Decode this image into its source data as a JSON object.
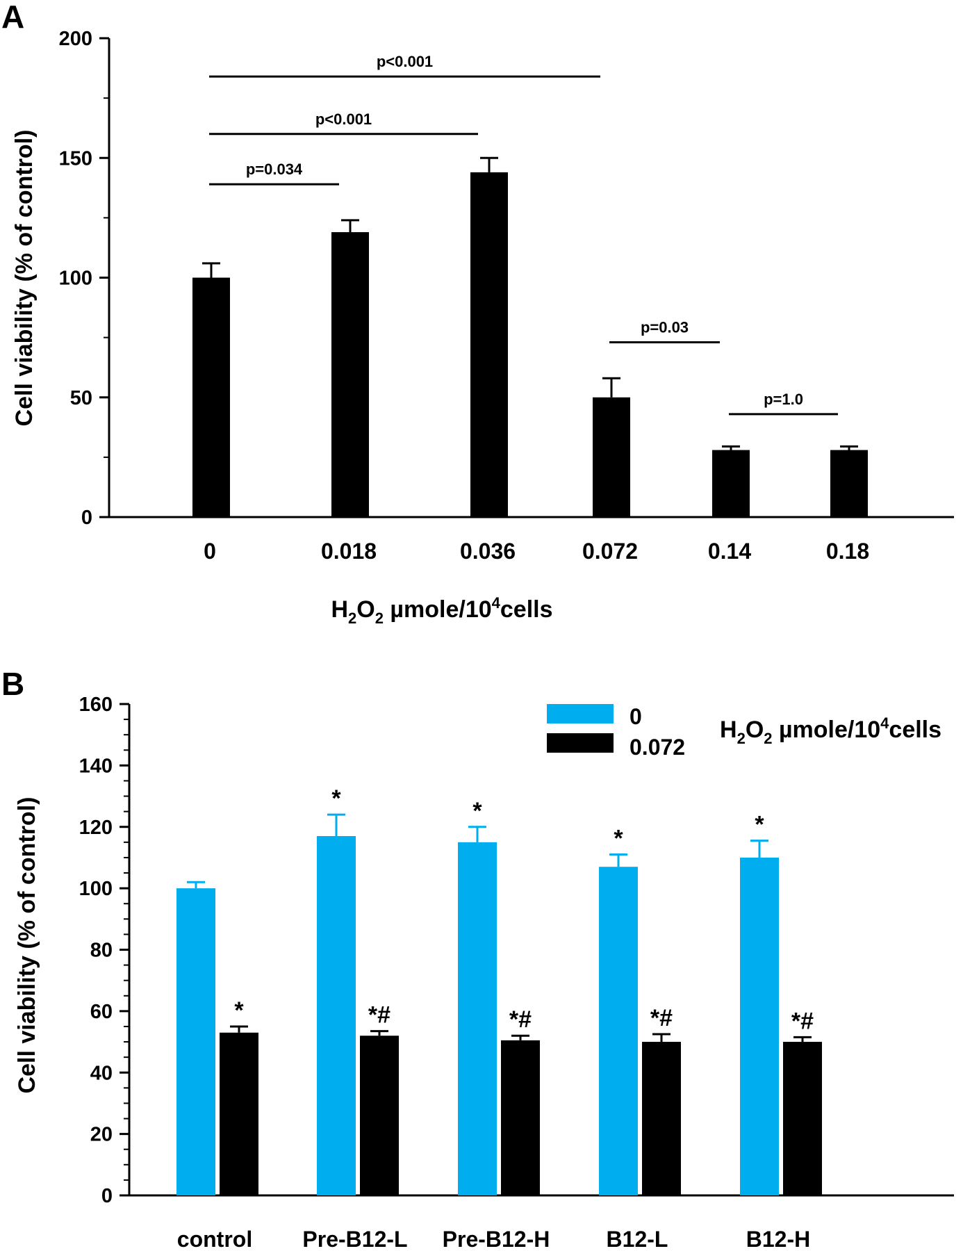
{
  "chart_data": [
    {
      "panel": "A",
      "type": "bar",
      "ylabel": "Cell viability (% of control)",
      "xlabel": {
        "prefix": "H",
        "sub1": "2",
        "mid": "O",
        "sub2": "2",
        "rest": " µmole/10",
        "sup": "4",
        "end": "cells"
      },
      "ylim": [
        0,
        200
      ],
      "yticks": [
        "0",
        "50",
        "100",
        "150",
        "200"
      ],
      "yticks_values": [
        0,
        50,
        100,
        150,
        200
      ],
      "categories": [
        "0",
        "0.018",
        "0.036",
        "0.072",
        "0.14",
        "0.18"
      ],
      "values": [
        100,
        119,
        144,
        50,
        28,
        28
      ],
      "errors": [
        6,
        5,
        6,
        8,
        1.5,
        1.5
      ],
      "color": "#000000",
      "comparisons": [
        {
          "label": "p<0.001",
          "from": 0,
          "to": 3,
          "level": 184
        },
        {
          "label": "p<0.001",
          "from": 0,
          "to": 2,
          "level": 160
        },
        {
          "label": "p=0.034",
          "from": 0,
          "to": 1,
          "level": 139
        },
        {
          "label": "p=0.03",
          "from": 3,
          "to": 4,
          "level": 73
        },
        {
          "label": "p=1.0",
          "from": 4,
          "to": 5,
          "level": 43
        }
      ]
    },
    {
      "panel": "B",
      "type": "bar",
      "ylabel": "Cell viability (% of control)",
      "ylim": [
        0,
        160
      ],
      "yticks": [
        "0",
        "20",
        "40",
        "60",
        "80",
        "100",
        "120",
        "140",
        "160"
      ],
      "yticks_values": [
        0,
        20,
        40,
        60,
        80,
        100,
        120,
        140,
        160
      ],
      "categories": [
        "control",
        "Pre-B12-L",
        "Pre-B12-H",
        "B12-L",
        "B12-H"
      ],
      "series": [
        {
          "name": "0",
          "color": "#00aeef",
          "values": [
            100,
            117,
            115,
            107,
            110
          ],
          "errors": [
            2,
            7,
            5,
            4,
            5.5
          ],
          "marks": [
            "",
            "*",
            "*",
            "*",
            "*"
          ]
        },
        {
          "name": "0.072",
          "color": "#000000",
          "values": [
            53,
            52,
            50.5,
            50,
            50
          ],
          "errors": [
            2,
            1.5,
            1.5,
            2.5,
            1.5
          ],
          "marks": [
            "*",
            "*#",
            "*#",
            "*#",
            "*#"
          ]
        }
      ],
      "legend_title": {
        "prefix": "H",
        "sub1": "2",
        "mid": "O",
        "sub2": "2",
        "rest": " µmole/10",
        "sup": "4",
        "end": "cells"
      },
      "legend_position": "top-right"
    }
  ]
}
